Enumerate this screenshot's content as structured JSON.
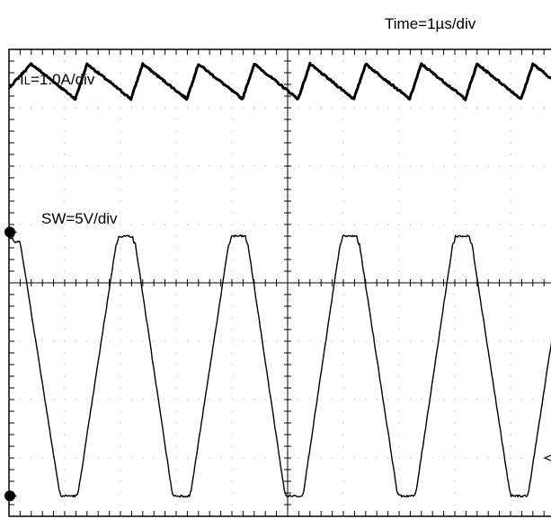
{
  "chart_data": {
    "type": "line",
    "time_label": "Time=1µs/div",
    "grid": true,
    "divisions": {
      "x": 10,
      "y": 8
    },
    "x_unit": "div",
    "series": [
      {
        "label_prefix": "I",
        "label_subscript": "L",
        "label_suffix": "=1.0A/div",
        "color": "#000000",
        "x": [
          -0.19,
          0.4,
          1.19,
          1.4,
          2.19,
          2.4,
          3.19,
          3.4,
          4.19,
          4.4,
          5.19,
          5.4,
          6.19,
          6.4,
          7.19,
          7.4,
          8.19,
          8.4,
          9.19,
          9.4,
          10.19
        ],
        "y": [
          7.15,
          7.75,
          7.15,
          7.75,
          7.15,
          7.75,
          7.15,
          7.75,
          7.15,
          7.75,
          7.15,
          7.75,
          7.15,
          7.75,
          7.15,
          7.75,
          7.15,
          7.75,
          7.15,
          7.75,
          7.15
        ],
        "noise": 0.015
      },
      {
        "label": "SW=5V/div",
        "color": "#000000",
        "x": [
          0.0,
          0.06,
          0.08,
          0.19,
          0.21,
          0.9,
          0.93,
          0.95,
          0.97,
          1.18,
          1.2,
          1.22,
          1.25,
          1.92,
          1.95,
          1.97,
          1.99,
          2.2,
          2.22,
          2.24,
          2.27,
          2.92,
          2.95,
          2.97,
          2.99,
          3.2,
          3.22,
          3.24,
          3.27,
          3.94,
          3.97,
          3.99,
          4.01,
          4.22,
          4.24,
          4.26,
          4.29,
          4.94,
          4.97,
          4.99,
          5.01,
          5.22,
          5.24,
          5.26,
          5.29,
          5.94,
          5.97,
          5.99,
          6.01,
          6.22,
          6.24,
          6.26,
          6.29,
          6.96,
          6.99,
          7.01,
          7.03,
          7.24,
          7.26,
          7.28,
          7.31,
          7.96,
          7.99,
          8.01,
          8.03,
          8.24,
          8.26,
          8.28,
          8.31,
          8.98,
          9.01,
          9.03,
          9.05,
          9.26,
          9.28,
          9.3,
          9.33,
          10.0
        ],
        "y": [
          4.76,
          4.77,
          4.7,
          4.7,
          4.65,
          0.45,
          0.35,
          0.35,
          0.35,
          0.35,
          0.35,
          0.35,
          0.45,
          4.65,
          4.7,
          4.8,
          4.8,
          4.8,
          4.8,
          4.7,
          4.65,
          0.45,
          0.35,
          0.35,
          0.35,
          0.35,
          0.35,
          0.35,
          0.45,
          4.65,
          4.7,
          4.8,
          4.8,
          4.8,
          4.8,
          4.7,
          4.65,
          0.45,
          0.35,
          0.35,
          0.35,
          0.35,
          0.35,
          0.35,
          0.45,
          4.65,
          4.7,
          4.8,
          4.8,
          4.8,
          4.8,
          4.7,
          4.65,
          0.45,
          0.35,
          0.35,
          0.35,
          0.35,
          0.35,
          0.35,
          0.45,
          4.65,
          4.7,
          4.8,
          4.8,
          4.8,
          4.8,
          4.7,
          4.65,
          0.45,
          0.35,
          0.35,
          0.35,
          0.35,
          0.35,
          0.35,
          0.45,
          4.65
        ],
        "noise": 0.02
      }
    ],
    "markers": [
      {
        "name": "channel-1-ground-marker",
        "y": 4.87
      },
      {
        "name": "channel-2-ground-marker",
        "y": 0.35
      }
    ],
    "trigger_marker_y": 1.0
  }
}
